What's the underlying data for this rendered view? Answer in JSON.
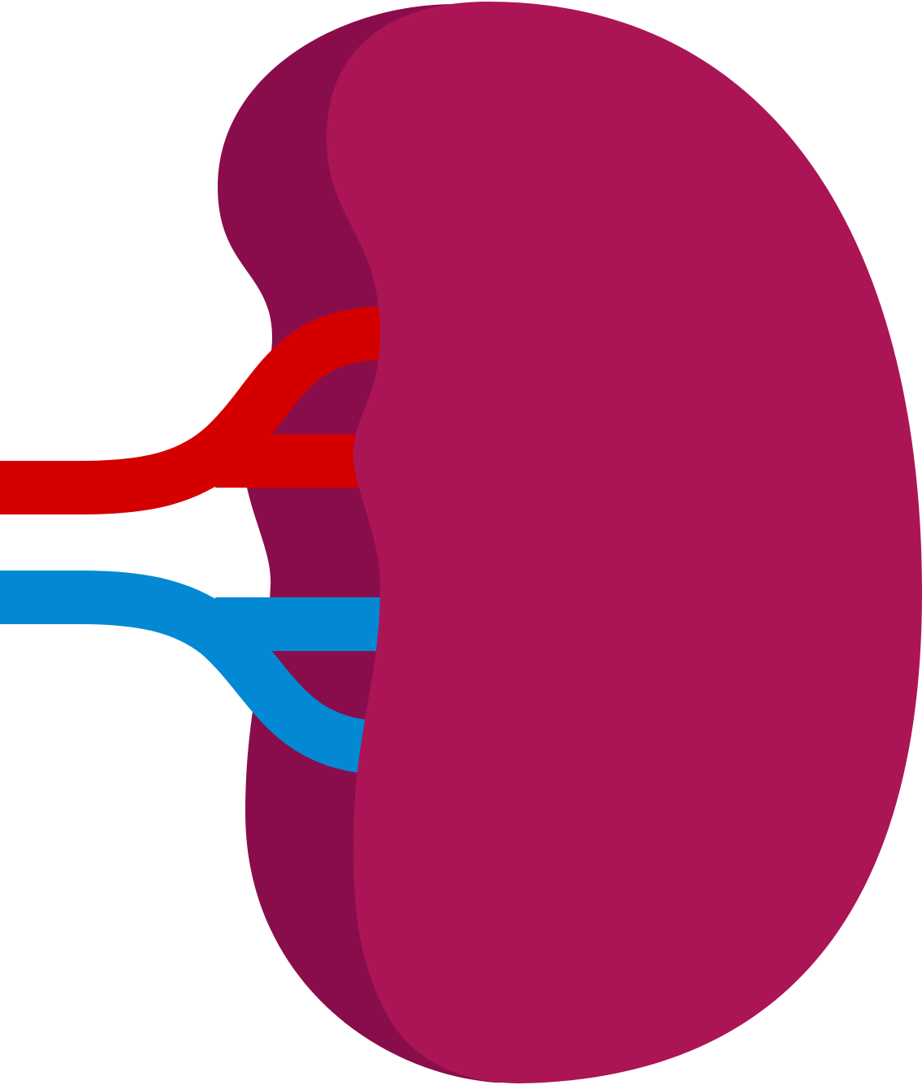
{
  "illustration": {
    "subject": "kidney-icon",
    "colors": {
      "background": "#ffffff",
      "kidney_back": "#8a0d4b",
      "kidney_front": "#ab1556",
      "artery": "#d40000",
      "vein": "#0389d4"
    }
  }
}
